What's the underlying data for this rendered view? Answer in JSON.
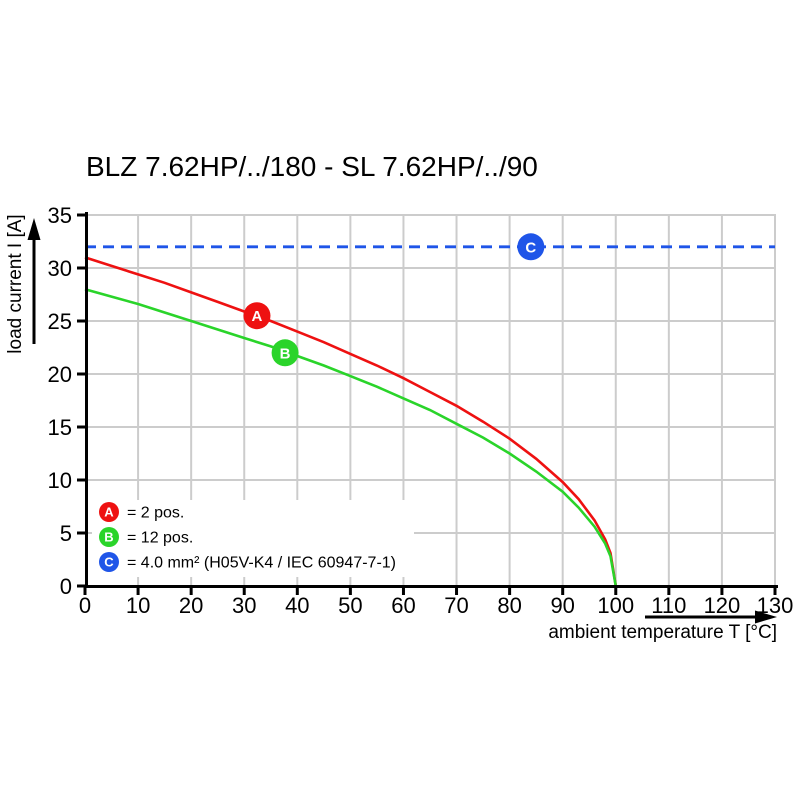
{
  "chart_data": {
    "type": "line",
    "title": "BLZ 7.62HP/../180 - SL 7.62HP/../90",
    "xlabel": "ambient temperature T [°C]",
    "ylabel": "load current I [A]",
    "xlim": [
      0,
      130
    ],
    "ylim": [
      0,
      35
    ],
    "x_ticks": [
      0,
      10,
      20,
      30,
      40,
      50,
      60,
      70,
      80,
      90,
      100,
      110,
      120,
      130
    ],
    "y_ticks": [
      0,
      5,
      10,
      15,
      20,
      25,
      30,
      35
    ],
    "grid": true,
    "legend_position": "bottom-left-inside",
    "colors": {
      "red": "#ee1111",
      "green": "#2ad42a",
      "blue": "#1f55e8",
      "grid": "#cccccc",
      "axis": "#000000",
      "marker_text": "#ffffff",
      "legend_background": "#ffffff"
    },
    "series": [
      {
        "id": "A",
        "name": "2 pos.",
        "color": "#ee1111",
        "style": "solid",
        "points": [
          [
            0,
            31.0
          ],
          [
            5,
            30.2
          ],
          [
            10,
            29.4
          ],
          [
            15,
            28.6
          ],
          [
            20,
            27.7
          ],
          [
            25,
            26.8
          ],
          [
            30,
            25.9
          ],
          [
            35,
            25.0
          ],
          [
            40,
            24.0
          ],
          [
            45,
            23.0
          ],
          [
            50,
            21.9
          ],
          [
            55,
            20.8
          ],
          [
            60,
            19.6
          ],
          [
            65,
            18.3
          ],
          [
            70,
            17.0
          ],
          [
            75,
            15.5
          ],
          [
            80,
            13.9
          ],
          [
            85,
            12.0
          ],
          [
            90,
            9.8
          ],
          [
            93,
            8.2
          ],
          [
            96,
            6.2
          ],
          [
            98,
            4.4
          ],
          [
            99,
            3.1
          ],
          [
            100,
            0
          ]
        ]
      },
      {
        "id": "B",
        "name": "12 pos.",
        "color": "#2ad42a",
        "style": "solid",
        "points": [
          [
            0,
            28.0
          ],
          [
            5,
            27.3
          ],
          [
            10,
            26.6
          ],
          [
            15,
            25.8
          ],
          [
            20,
            25.0
          ],
          [
            25,
            24.2
          ],
          [
            30,
            23.4
          ],
          [
            35,
            22.6
          ],
          [
            40,
            21.7
          ],
          [
            45,
            20.8
          ],
          [
            50,
            19.8
          ],
          [
            55,
            18.8
          ],
          [
            60,
            17.7
          ],
          [
            65,
            16.6
          ],
          [
            70,
            15.3
          ],
          [
            75,
            14.0
          ],
          [
            80,
            12.5
          ],
          [
            85,
            10.8
          ],
          [
            90,
            8.9
          ],
          [
            93,
            7.4
          ],
          [
            96,
            5.6
          ],
          [
            98,
            4.0
          ],
          [
            99,
            2.8
          ],
          [
            100,
            0
          ]
        ]
      },
      {
        "id": "C",
        "name": "4.0 mm² (H05V-K4 / IEC 60947-7-1)",
        "color": "#1f55e8",
        "style": "dashed",
        "points": [
          [
            0,
            32
          ],
          [
            130,
            32
          ]
        ]
      }
    ],
    "markers": [
      {
        "letter": "A",
        "color": "#ee1111",
        "t": 32.4,
        "i": 25.5
      },
      {
        "letter": "B",
        "color": "#2ad42a",
        "t": 37.7,
        "i": 22.0
      },
      {
        "letter": "C",
        "color": "#1f55e8",
        "t": 84.0,
        "i": 32.0
      }
    ],
    "legend": [
      {
        "letter": "A",
        "color": "#ee1111",
        "text": "= 2 pos."
      },
      {
        "letter": "B",
        "color": "#2ad42a",
        "text": "= 12 pos."
      },
      {
        "letter": "C",
        "color": "#1f55e8",
        "text": "= 4.0 mm² (H05V-K4 / IEC 60947-7-1)"
      }
    ]
  }
}
